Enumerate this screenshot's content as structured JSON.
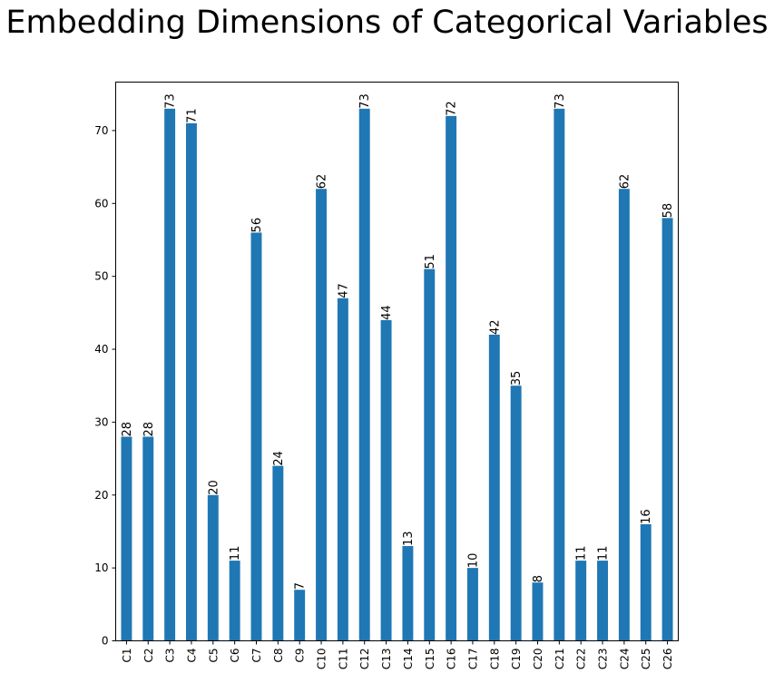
{
  "chart_data": {
    "type": "bar",
    "title": "Embedding Dimensions of Categorical Variables",
    "xlabel": "",
    "ylabel": "",
    "categories": [
      "C1",
      "C2",
      "C3",
      "C4",
      "C5",
      "C6",
      "C7",
      "C8",
      "C9",
      "C10",
      "C11",
      "C12",
      "C13",
      "C14",
      "C15",
      "C16",
      "C17",
      "C18",
      "C19",
      "C20",
      "C21",
      "C22",
      "C23",
      "C24",
      "C25",
      "C26"
    ],
    "values": [
      28,
      28,
      73,
      71,
      20,
      11,
      56,
      24,
      7,
      62,
      47,
      73,
      44,
      13,
      51,
      72,
      10,
      42,
      35,
      8,
      73,
      11,
      11,
      62,
      16,
      58
    ],
    "ylim": [
      0,
      76.65
    ],
    "yticks": [
      0,
      10,
      20,
      30,
      40,
      50,
      60,
      70
    ],
    "grid": false,
    "legend": "none",
    "bar_color": "#1f77b4"
  }
}
